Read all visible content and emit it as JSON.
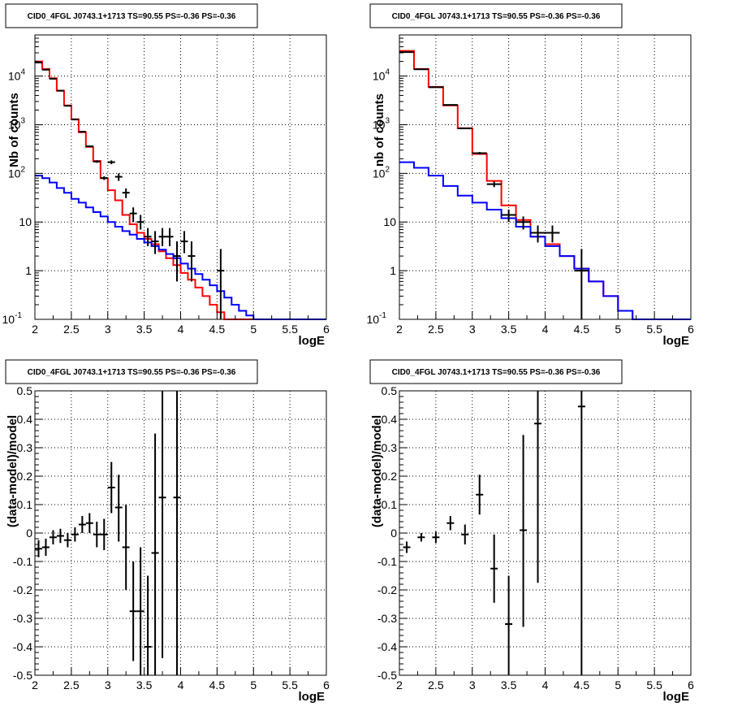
{
  "title": "CID0_4FGL J0743.1+1713 TS=90.55 PS=-0.36 PS=-0.36",
  "colors": {
    "model_total": "#ff0000",
    "model_background": "#0000ff",
    "data": "#000000"
  },
  "chart_data": [
    {
      "type": "line",
      "title": "CID0_4FGL J0743.1+1713 TS=90.55 PS=-0.36 PS=-0.36",
      "xlabel": "logE",
      "ylabel": "Nb of counts",
      "xlim": [
        2,
        6
      ],
      "ylim": [
        0.1,
        70000
      ],
      "yscale": "log",
      "grid": true,
      "x_ticks": [
        "2",
        "2.5",
        "3",
        "3.5",
        "4",
        "4.5",
        "5",
        "5.5",
        "6"
      ],
      "y_ticks": [
        {
          "value": 0.1,
          "label": "10",
          "exp": "-1"
        },
        {
          "value": 1,
          "label": "1",
          "exp": ""
        },
        {
          "value": 10,
          "label": "10",
          "exp": ""
        },
        {
          "value": 100,
          "label": "10",
          "exp": "2"
        },
        {
          "value": 1000,
          "label": "10",
          "exp": "3"
        },
        {
          "value": 10000,
          "label": "10",
          "exp": "4"
        }
      ],
      "bin_edges": [
        2.0,
        2.1,
        2.2,
        2.3,
        2.4,
        2.5,
        2.6,
        2.7,
        2.8,
        2.9,
        3.0,
        3.1,
        3.2,
        3.3,
        3.4,
        3.5,
        3.6,
        3.7,
        3.8,
        3.9,
        4.0,
        4.1,
        4.2,
        4.3,
        4.4,
        4.5,
        4.6,
        4.7,
        4.8,
        4.9,
        5.0,
        5.1,
        5.2,
        5.3,
        5.4,
        5.5,
        5.6,
        5.7,
        5.8,
        5.9,
        6.0
      ],
      "series": [
        {
          "kind": "step",
          "color_key": "model_total",
          "values": [
            20000,
            14000,
            9000,
            5000,
            2500,
            1300,
            700,
            350,
            180,
            80,
            45,
            28,
            14,
            9,
            6,
            4.5,
            3.5,
            2.5,
            1.8,
            1.3,
            0.9,
            0.65,
            0.45,
            0.3,
            0.2,
            0.14,
            0.1,
            0.1,
            0.1,
            0.1,
            0.1,
            0.1,
            0.1,
            0.1,
            0.1,
            0.1,
            0.1,
            0.1,
            0.1,
            0.1
          ]
        },
        {
          "kind": "step",
          "color_key": "model_background",
          "values": [
            90,
            80,
            65,
            50,
            40,
            30,
            25,
            20,
            16,
            13,
            10,
            8,
            6.5,
            5.5,
            4.5,
            3.8,
            3.2,
            2.7,
            2.2,
            1.8,
            1.4,
            1.1,
            0.85,
            0.65,
            0.5,
            0.38,
            0.28,
            0.2,
            0.15,
            0.12,
            0.1,
            0.1,
            0.1,
            0.1,
            0.1,
            0.1,
            0.1,
            0.1,
            0.1,
            0.1
          ]
        },
        {
          "kind": "points",
          "color_key": "data",
          "x": [
            2.05,
            2.15,
            2.25,
            2.35,
            2.45,
            2.55,
            2.65,
            2.75,
            2.85,
            2.95,
            3.05,
            3.15,
            3.25,
            3.35,
            3.45,
            3.55,
            3.65,
            3.75,
            3.85,
            3.95,
            4.05,
            4.15,
            4.55
          ],
          "y": [
            19000,
            13500,
            8800,
            5000,
            2450,
            1280,
            720,
            360,
            175,
            80,
            170,
            85,
            40,
            15,
            10,
            5,
            4,
            5,
            5,
            2,
            4,
            2,
            1
          ],
          "ylo": [
            18800,
            13300,
            8700,
            4900,
            2400,
            1250,
            700,
            345,
            165,
            73,
            155,
            70,
            31,
            10,
            7,
            3.2,
            2.2,
            3.2,
            3.2,
            0.6,
            2.3,
            0.6,
            0.1
          ],
          "yhi": [
            19200,
            13700,
            8900,
            5100,
            2500,
            1310,
            740,
            375,
            185,
            87,
            185,
            100,
            49,
            20,
            14,
            7.5,
            6.5,
            7.5,
            7.5,
            4,
            6.5,
            4,
            2.8
          ]
        }
      ]
    },
    {
      "type": "line",
      "title": "CID0_4FGL J0743.1+1713 TS=90.55 PS=-0.36 PS=-0.36",
      "xlabel": "logE",
      "ylabel": "nb of counts",
      "xlim": [
        2,
        6
      ],
      "ylim": [
        0.1,
        70000
      ],
      "yscale": "log",
      "grid": true,
      "x_ticks": [
        "2",
        "2.5",
        "3",
        "3.5",
        "4",
        "4.5",
        "5",
        "5.5",
        "6"
      ],
      "y_ticks": [
        {
          "value": 0.1,
          "label": "10",
          "exp": "-1"
        },
        {
          "value": 1,
          "label": "1",
          "exp": ""
        },
        {
          "value": 10,
          "label": "10",
          "exp": ""
        },
        {
          "value": 100,
          "label": "10",
          "exp": "2"
        },
        {
          "value": 1000,
          "label": "10",
          "exp": "3"
        },
        {
          "value": 10000,
          "label": "10",
          "exp": "4"
        }
      ],
      "bin_edges": [
        2.0,
        2.2,
        2.4,
        2.6,
        2.8,
        3.0,
        3.2,
        3.4,
        3.6,
        3.8,
        4.0,
        4.2,
        4.4,
        4.6,
        4.8,
        5.0,
        5.2,
        5.4,
        5.6,
        5.8,
        6.0
      ],
      "series": [
        {
          "kind": "step",
          "color_key": "model_total",
          "values": [
            33000,
            14000,
            6000,
            2500,
            850,
            250,
            70,
            22,
            11,
            5,
            3.5,
            2,
            1.1,
            0.6,
            0.3,
            0.15,
            0.1,
            0.1,
            0.1,
            0.1
          ]
        },
        {
          "kind": "step",
          "color_key": "model_background",
          "values": [
            170,
            130,
            90,
            55,
            35,
            25,
            18,
            12,
            8,
            5,
            3.2,
            2,
            1.1,
            0.6,
            0.3,
            0.15,
            0.1,
            0.1,
            0.1,
            0.1
          ]
        },
        {
          "kind": "points",
          "color_key": "data",
          "x": [
            2.1,
            2.3,
            2.5,
            2.7,
            2.9,
            3.1,
            3.3,
            3.5,
            3.7,
            3.9,
            4.1,
            4.5
          ],
          "y": [
            31000,
            13800,
            5900,
            2550,
            840,
            260,
            60,
            14,
            10,
            6,
            6,
            1
          ],
          "ylo": [
            30800,
            13700,
            5850,
            2500,
            820,
            245,
            52,
            10,
            7,
            3.8,
            3.8,
            0.1
          ],
          "yhi": [
            31200,
            13900,
            5950,
            2600,
            860,
            275,
            68,
            18,
            13,
            8.5,
            8.5,
            2.8
          ]
        }
      ]
    },
    {
      "type": "scatter",
      "title": "CID0_4FGL J0743.1+1713 TS=90.55 PS=-0.36 PS=-0.36",
      "xlabel": "logE",
      "ylabel": "(data-model)/model",
      "xlim": [
        2,
        6
      ],
      "ylim": [
        -0.5,
        0.5
      ],
      "grid": true,
      "x_ticks": [
        "2",
        "2.5",
        "3",
        "3.5",
        "4",
        "4.5",
        "5",
        "5.5",
        "6"
      ],
      "y_ticks": [
        "-0.5",
        "-0.4",
        "-0.3",
        "-0.2",
        "-0.1",
        "0",
        "0.1",
        "0.2",
        "0.3",
        "0.4",
        "0.5"
      ],
      "series": [
        {
          "kind": "points",
          "color_key": "data",
          "x": [
            2.05,
            2.15,
            2.25,
            2.35,
            2.45,
            2.55,
            2.65,
            2.75,
            2.85,
            2.95,
            3.05,
            3.15,
            3.25,
            3.35,
            3.45,
            3.55,
            3.65,
            3.75,
            3.95
          ],
          "y": [
            -0.055,
            -0.05,
            -0.015,
            -0.01,
            -0.025,
            -0.005,
            0.03,
            0.035,
            -0.005,
            -0.005,
            0.16,
            0.09,
            -0.05,
            -0.275,
            -0.275,
            -0.4,
            -0.07,
            0.125,
            0.125
          ],
          "ylo": [
            -0.085,
            -0.08,
            -0.04,
            -0.035,
            -0.05,
            -0.03,
            0.0,
            0.0,
            -0.05,
            -0.06,
            0.07,
            -0.03,
            -0.2,
            -0.45,
            -0.5,
            -0.5,
            -0.5,
            -0.44,
            -0.5
          ],
          "yhi": [
            -0.025,
            -0.02,
            0.01,
            0.015,
            0.0,
            0.02,
            0.06,
            0.07,
            0.04,
            0.05,
            0.25,
            0.205,
            0.1,
            -0.1,
            -0.05,
            -0.15,
            0.35,
            0.5,
            0.5
          ]
        }
      ]
    },
    {
      "type": "scatter",
      "title": "CID0_4FGL J0743.1+1713 TS=90.55 PS=-0.36 PS=-0.36",
      "xlabel": "logE",
      "ylabel": "(data-model)/model",
      "xlim": [
        2,
        6
      ],
      "ylim": [
        -0.5,
        0.5
      ],
      "grid": true,
      "x_ticks": [
        "2",
        "2.5",
        "3",
        "3.5",
        "4",
        "4.5",
        "5",
        "5.5",
        "6"
      ],
      "y_ticks": [
        "-0.5",
        "-0.4",
        "-0.3",
        "-0.2",
        "-0.1",
        "0",
        "0.1",
        "0.2",
        "0.3",
        "0.4",
        "0.5"
      ],
      "series": [
        {
          "kind": "points",
          "color_key": "data",
          "x": [
            2.1,
            2.3,
            2.5,
            2.7,
            2.9,
            3.1,
            3.3,
            3.5,
            3.7,
            3.9,
            4.5
          ],
          "y": [
            -0.05,
            -0.015,
            -0.015,
            0.035,
            -0.005,
            0.135,
            -0.125,
            -0.32,
            0.01,
            0.385,
            0.445
          ],
          "ylo": [
            -0.07,
            -0.03,
            -0.035,
            0.01,
            -0.04,
            0.065,
            -0.245,
            -0.5,
            -0.33,
            -0.175,
            -0.5
          ],
          "yhi": [
            -0.03,
            0.0,
            0.005,
            0.06,
            0.03,
            0.205,
            -0.005,
            -0.15,
            0.345,
            0.5,
            0.5
          ]
        }
      ]
    }
  ]
}
